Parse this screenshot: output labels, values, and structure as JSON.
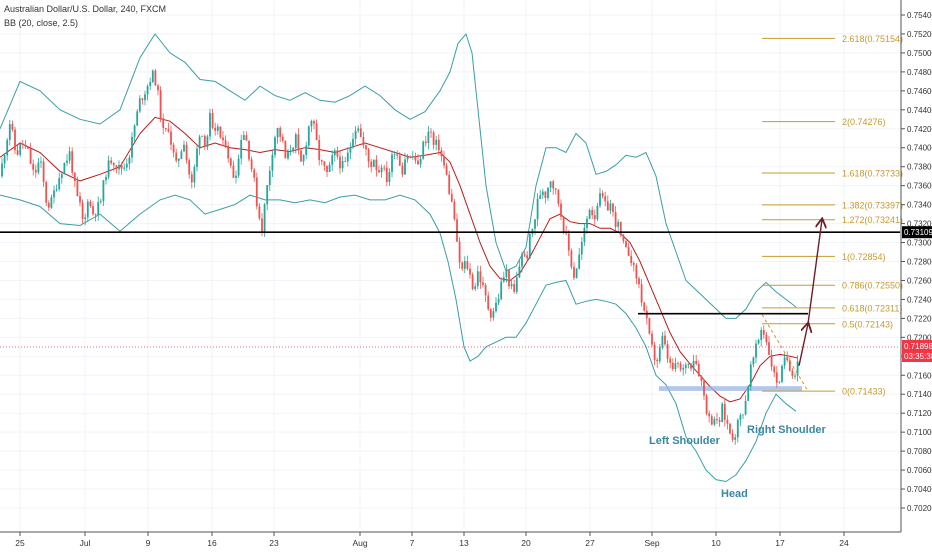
{
  "header": {
    "title": "Australian Dollar/U.S. Dollar, 240, FXCM",
    "indicator": "BB (20, close, 2.5)"
  },
  "colors": {
    "candle_up": "#26a69a",
    "candle_down": "#ef5350",
    "bb_band": "#3a9ea5",
    "bb_basis": "#b71c1c",
    "fib": "#c79a2c",
    "resistance": "#000000",
    "price_tag": "#f23645",
    "shoulder_label": "#3a88a0",
    "zone": "#9ab3e6",
    "arrow": "#6b1d2a"
  },
  "chart_data": {
    "type": "candlestick",
    "title": "Australian Dollar/U.S. Dollar, 240, FXCM",
    "x_ticks": [
      "25",
      "Jul",
      "9",
      "16",
      "23",
      "Aug",
      "7",
      "13",
      "20",
      "27",
      "Sep",
      "10",
      "17",
      "24"
    ],
    "y_ticks": [
      "0.75400",
      "0.75200",
      "0.75000",
      "0.74800",
      "0.74600",
      "0.74400",
      "0.74200",
      "0.74000",
      "0.73800",
      "0.73600",
      "0.73400",
      "0.73200",
      "0.73000",
      "0.72800",
      "0.72600",
      "0.72400",
      "0.72200",
      "0.72000",
      "0.71800",
      "0.71600",
      "0.71400",
      "0.71200",
      "0.71000",
      "0.70800",
      "0.70600",
      "0.70400",
      "0.70200"
    ],
    "ylim": [
      0.7015,
      0.7555
    ],
    "close_path": [
      [
        0,
        0.737
      ],
      [
        10,
        0.7428
      ],
      [
        16,
        0.7392
      ],
      [
        22,
        0.7405
      ],
      [
        28,
        0.7395
      ],
      [
        34,
        0.737
      ],
      [
        40,
        0.7388
      ],
      [
        46,
        0.7345
      ],
      [
        50,
        0.7338
      ],
      [
        56,
        0.736
      ],
      [
        62,
        0.7378
      ],
      [
        70,
        0.7395
      ],
      [
        76,
        0.735
      ],
      [
        80,
        0.7338
      ],
      [
        84,
        0.7315
      ],
      [
        88,
        0.735
      ],
      [
        92,
        0.733
      ],
      [
        100,
        0.734
      ],
      [
        106,
        0.7375
      ],
      [
        112,
        0.739
      ],
      [
        118,
        0.7378
      ],
      [
        124,
        0.738
      ],
      [
        130,
        0.7395
      ],
      [
        134,
        0.742
      ],
      [
        140,
        0.745
      ],
      [
        146,
        0.7462
      ],
      [
        152,
        0.7478
      ],
      [
        156,
        0.747
      ],
      [
        160,
        0.744
      ],
      [
        164,
        0.741
      ],
      [
        168,
        0.7425
      ],
      [
        172,
        0.74
      ],
      [
        176,
        0.738
      ],
      [
        180,
        0.7395
      ],
      [
        184,
        0.7408
      ],
      [
        188,
        0.7378
      ],
      [
        192,
        0.736
      ],
      [
        196,
        0.739
      ],
      [
        200,
        0.742
      ],
      [
        206,
        0.7403
      ],
      [
        210,
        0.7432
      ],
      [
        214,
        0.7407
      ],
      [
        218,
        0.7425
      ],
      [
        222,
        0.74
      ],
      [
        226,
        0.7408
      ],
      [
        230,
        0.738
      ],
      [
        234,
        0.737
      ],
      [
        238,
        0.7383
      ],
      [
        242,
        0.742
      ],
      [
        246,
        0.741
      ],
      [
        250,
        0.7388
      ],
      [
        254,
        0.7365
      ],
      [
        258,
        0.7333
      ],
      [
        262,
        0.7315
      ],
      [
        266,
        0.735
      ],
      [
        270,
        0.738
      ],
      [
        274,
        0.741
      ],
      [
        278,
        0.742
      ],
      [
        282,
        0.7408
      ],
      [
        286,
        0.7385
      ],
      [
        290,
        0.7398
      ],
      [
        296,
        0.741
      ],
      [
        300,
        0.738
      ],
      [
        304,
        0.7392
      ],
      [
        308,
        0.742
      ],
      [
        312,
        0.7432
      ],
      [
        316,
        0.7408
      ],
      [
        320,
        0.7385
      ],
      [
        324,
        0.7378
      ],
      [
        328,
        0.737
      ],
      [
        332,
        0.7388
      ],
      [
        336,
        0.7395
      ],
      [
        340,
        0.7384
      ],
      [
        344,
        0.7378
      ],
      [
        350,
        0.74
      ],
      [
        354,
        0.742
      ],
      [
        358,
        0.7425
      ],
      [
        362,
        0.7405
      ],
      [
        366,
        0.7395
      ],
      [
        370,
        0.738
      ],
      [
        374,
        0.739
      ],
      [
        378,
        0.7373
      ],
      [
        382,
        0.7385
      ],
      [
        386,
        0.7365
      ],
      [
        390,
        0.7378
      ],
      [
        394,
        0.74
      ],
      [
        398,
        0.7392
      ],
      [
        402,
        0.7375
      ],
      [
        406,
        0.7395
      ],
      [
        410,
        0.7388
      ],
      [
        414,
        0.7392
      ],
      [
        418,
        0.7378
      ],
      [
        422,
        0.74
      ],
      [
        426,
        0.741
      ],
      [
        430,
        0.742
      ],
      [
        434,
        0.74
      ],
      [
        438,
        0.7405
      ],
      [
        442,
        0.7388
      ],
      [
        446,
        0.7373
      ],
      [
        450,
        0.735
      ],
      [
        454,
        0.733
      ],
      [
        458,
        0.7285
      ],
      [
        462,
        0.727
      ],
      [
        466,
        0.728
      ],
      [
        470,
        0.7265
      ],
      [
        474,
        0.725
      ],
      [
        478,
        0.727
      ],
      [
        482,
        0.7255
      ],
      [
        486,
        0.724
      ],
      [
        490,
        0.7225
      ],
      [
        494,
        0.723
      ],
      [
        498,
        0.724
      ],
      [
        502,
        0.726
      ],
      [
        506,
        0.727
      ],
      [
        510,
        0.7255
      ],
      [
        514,
        0.7245
      ],
      [
        518,
        0.7268
      ],
      [
        522,
        0.729
      ],
      [
        526,
        0.728
      ],
      [
        530,
        0.7305
      ],
      [
        534,
        0.732
      ],
      [
        538,
        0.7345
      ],
      [
        542,
        0.7358
      ],
      [
        546,
        0.735
      ],
      [
        550,
        0.737
      ],
      [
        554,
        0.7358
      ],
      [
        558,
        0.7345
      ],
      [
        562,
        0.7325
      ],
      [
        566,
        0.7305
      ],
      [
        570,
        0.7285
      ],
      [
        574,
        0.7265
      ],
      [
        578,
        0.728
      ],
      [
        582,
        0.73
      ],
      [
        586,
        0.732
      ],
      [
        590,
        0.734
      ],
      [
        594,
        0.7325
      ],
      [
        598,
        0.7345
      ],
      [
        602,
        0.7348
      ],
      [
        606,
        0.7335
      ],
      [
        610,
        0.7342
      ],
      [
        614,
        0.7325
      ],
      [
        618,
        0.7318
      ],
      [
        622,
        0.73
      ],
      [
        626,
        0.729
      ],
      [
        630,
        0.729
      ],
      [
        634,
        0.727
      ],
      [
        638,
        0.726
      ],
      [
        642,
        0.7238
      ],
      [
        646,
        0.722
      ],
      [
        650,
        0.7195
      ],
      [
        654,
        0.718
      ],
      [
        658,
        0.7175
      ],
      [
        662,
        0.72
      ],
      [
        666,
        0.7185
      ],
      [
        670,
        0.717
      ],
      [
        674,
        0.7165
      ],
      [
        678,
        0.7172
      ],
      [
        682,
        0.716
      ],
      [
        686,
        0.7175
      ],
      [
        690,
        0.717
      ],
      [
        694,
        0.718
      ],
      [
        698,
        0.7168
      ],
      [
        702,
        0.715
      ],
      [
        706,
        0.7128
      ],
      [
        710,
        0.711
      ],
      [
        714,
        0.7118
      ],
      [
        718,
        0.7105
      ],
      [
        722,
        0.7125
      ],
      [
        726,
        0.7112
      ],
      [
        730,
        0.71
      ],
      [
        734,
        0.7095
      ],
      [
        738,
        0.711
      ],
      [
        742,
        0.712
      ],
      [
        746,
        0.7135
      ],
      [
        750,
        0.7165
      ],
      [
        754,
        0.718
      ],
      [
        758,
        0.7195
      ],
      [
        762,
        0.7212
      ],
      [
        766,
        0.7198
      ],
      [
        770,
        0.718
      ],
      [
        774,
        0.716
      ],
      [
        778,
        0.7152
      ],
      [
        782,
        0.7165
      ],
      [
        786,
        0.718
      ],
      [
        790,
        0.717
      ],
      [
        794,
        0.716
      ],
      [
        798,
        0.7178
      ]
    ],
    "bb_upper": [
      [
        0,
        0.742
      ],
      [
        20,
        0.747
      ],
      [
        40,
        0.746
      ],
      [
        60,
        0.744
      ],
      [
        80,
        0.743
      ],
      [
        100,
        0.7425
      ],
      [
        120,
        0.744
      ],
      [
        140,
        0.7495
      ],
      [
        155,
        0.752
      ],
      [
        170,
        0.75
      ],
      [
        185,
        0.749
      ],
      [
        200,
        0.7472
      ],
      [
        215,
        0.747
      ],
      [
        230,
        0.746
      ],
      [
        245,
        0.745
      ],
      [
        260,
        0.7465
      ],
      [
        275,
        0.7455
      ],
      [
        290,
        0.745
      ],
      [
        305,
        0.7458
      ],
      [
        320,
        0.745
      ],
      [
        335,
        0.7448
      ],
      [
        350,
        0.7455
      ],
      [
        365,
        0.7465
      ],
      [
        380,
        0.7455
      ],
      [
        395,
        0.744
      ],
      [
        410,
        0.743
      ],
      [
        425,
        0.7438
      ],
      [
        440,
        0.746
      ],
      [
        450,
        0.748
      ],
      [
        458,
        0.751
      ],
      [
        466,
        0.752
      ],
      [
        472,
        0.75
      ],
      [
        478,
        0.744
      ],
      [
        486,
        0.736
      ],
      [
        496,
        0.73
      ],
      [
        506,
        0.727
      ],
      [
        516,
        0.7275
      ],
      [
        526,
        0.7295
      ],
      [
        536,
        0.736
      ],
      [
        546,
        0.74
      ],
      [
        556,
        0.74
      ],
      [
        566,
        0.7395
      ],
      [
        576,
        0.7415
      ],
      [
        586,
        0.7405
      ],
      [
        596,
        0.7372
      ],
      [
        606,
        0.7375
      ],
      [
        616,
        0.7382
      ],
      [
        626,
        0.7392
      ],
      [
        636,
        0.739
      ],
      [
        646,
        0.7395
      ],
      [
        656,
        0.737
      ],
      [
        666,
        0.732
      ],
      [
        676,
        0.729
      ],
      [
        686,
        0.726
      ],
      [
        696,
        0.725
      ],
      [
        706,
        0.724
      ],
      [
        716,
        0.723
      ],
      [
        726,
        0.722
      ],
      [
        736,
        0.722
      ],
      [
        746,
        0.723
      ],
      [
        756,
        0.7248
      ],
      [
        766,
        0.7258
      ],
      [
        776,
        0.7248
      ],
      [
        786,
        0.724
      ],
      [
        796,
        0.7232
      ]
    ],
    "bb_lower": [
      [
        0,
        0.735
      ],
      [
        20,
        0.7345
      ],
      [
        40,
        0.7338
      ],
      [
        60,
        0.732
      ],
      [
        80,
        0.7318
      ],
      [
        100,
        0.733
      ],
      [
        120,
        0.7312
      ],
      [
        140,
        0.733
      ],
      [
        160,
        0.7345
      ],
      [
        175,
        0.735
      ],
      [
        190,
        0.7345
      ],
      [
        205,
        0.733
      ],
      [
        220,
        0.7335
      ],
      [
        235,
        0.734
      ],
      [
        250,
        0.735
      ],
      [
        265,
        0.7345
      ],
      [
        280,
        0.7345
      ],
      [
        295,
        0.7342
      ],
      [
        310,
        0.7345
      ],
      [
        325,
        0.7342
      ],
      [
        340,
        0.7348
      ],
      [
        355,
        0.735
      ],
      [
        370,
        0.7345
      ],
      [
        385,
        0.7345
      ],
      [
        400,
        0.735
      ],
      [
        415,
        0.7345
      ],
      [
        430,
        0.733
      ],
      [
        440,
        0.731
      ],
      [
        448,
        0.728
      ],
      [
        456,
        0.724
      ],
      [
        464,
        0.719
      ],
      [
        470,
        0.7175
      ],
      [
        478,
        0.718
      ],
      [
        486,
        0.719
      ],
      [
        496,
        0.7195
      ],
      [
        506,
        0.72
      ],
      [
        516,
        0.72
      ],
      [
        526,
        0.7215
      ],
      [
        536,
        0.7235
      ],
      [
        546,
        0.7255
      ],
      [
        556,
        0.7258
      ],
      [
        566,
        0.726
      ],
      [
        576,
        0.7235
      ],
      [
        586,
        0.7238
      ],
      [
        596,
        0.724
      ],
      [
        606,
        0.7238
      ],
      [
        616,
        0.7235
      ],
      [
        626,
        0.7225
      ],
      [
        636,
        0.721
      ],
      [
        646,
        0.719
      ],
      [
        656,
        0.716
      ],
      [
        666,
        0.715
      ],
      [
        676,
        0.713
      ],
      [
        686,
        0.7095
      ],
      [
        696,
        0.708
      ],
      [
        706,
        0.706
      ],
      [
        716,
        0.705
      ],
      [
        726,
        0.7048
      ],
      [
        736,
        0.7055
      ],
      [
        746,
        0.707
      ],
      [
        756,
        0.709
      ],
      [
        766,
        0.712
      ],
      [
        776,
        0.714
      ],
      [
        786,
        0.713
      ],
      [
        796,
        0.7122
      ]
    ],
    "bb_basis": [
      [
        0,
        0.739
      ],
      [
        20,
        0.7405
      ],
      [
        40,
        0.7395
      ],
      [
        60,
        0.7375
      ],
      [
        80,
        0.7365
      ],
      [
        100,
        0.7372
      ],
      [
        120,
        0.738
      ],
      [
        140,
        0.7415
      ],
      [
        155,
        0.7432
      ],
      [
        170,
        0.7428
      ],
      [
        185,
        0.7415
      ],
      [
        200,
        0.74
      ],
      [
        215,
        0.7405
      ],
      [
        230,
        0.74
      ],
      [
        245,
        0.7398
      ],
      [
        260,
        0.7395
      ],
      [
        275,
        0.7398
      ],
      [
        290,
        0.7396
      ],
      [
        305,
        0.74
      ],
      [
        320,
        0.7398
      ],
      [
        335,
        0.7395
      ],
      [
        350,
        0.74
      ],
      [
        365,
        0.7405
      ],
      [
        380,
        0.74
      ],
      [
        395,
        0.7395
      ],
      [
        410,
        0.739
      ],
      [
        425,
        0.7392
      ],
      [
        440,
        0.7395
      ],
      [
        450,
        0.7385
      ],
      [
        460,
        0.736
      ],
      [
        470,
        0.733
      ],
      [
        480,
        0.73
      ],
      [
        490,
        0.7275
      ],
      [
        500,
        0.7262
      ],
      [
        510,
        0.726
      ],
      [
        520,
        0.7268
      ],
      [
        530,
        0.7285
      ],
      [
        540,
        0.7305
      ],
      [
        550,
        0.7325
      ],
      [
        560,
        0.733
      ],
      [
        570,
        0.7322
      ],
      [
        580,
        0.732
      ],
      [
        590,
        0.732
      ],
      [
        600,
        0.7315
      ],
      [
        610,
        0.7315
      ],
      [
        620,
        0.731
      ],
      [
        630,
        0.73
      ],
      [
        640,
        0.728
      ],
      [
        650,
        0.7255
      ],
      [
        660,
        0.723
      ],
      [
        670,
        0.7205
      ],
      [
        680,
        0.7185
      ],
      [
        690,
        0.7172
      ],
      [
        700,
        0.716
      ],
      [
        710,
        0.7148
      ],
      [
        720,
        0.7138
      ],
      [
        730,
        0.7132
      ],
      [
        740,
        0.7135
      ],
      [
        750,
        0.715
      ],
      [
        760,
        0.717
      ],
      [
        770,
        0.718
      ],
      [
        780,
        0.7182
      ],
      [
        790,
        0.718
      ],
      [
        798,
        0.7178
      ]
    ],
    "fibonacci": [
      {
        "ratio": "2.618",
        "label": "2.618(0.75154)",
        "price": 0.75154
      },
      {
        "ratio": "2",
        "label": "2(0.74276)",
        "price": 0.74276
      },
      {
        "ratio": "1.618",
        "label": "1.618(0.73733)",
        "price": 0.73733
      },
      {
        "ratio": "1.382",
        "label": "1.382(0.73397)",
        "price": 0.73397
      },
      {
        "ratio": "1.272",
        "label": "1.272(0.73241)",
        "price": 0.73241
      },
      {
        "ratio": "1",
        "label": "1(0.72854)",
        "price": 0.72854
      },
      {
        "ratio": "0.786",
        "label": "0.786(0.72550)",
        "price": 0.7255
      },
      {
        "ratio": "0.618",
        "label": "0.618(0.72311)",
        "price": 0.72311
      },
      {
        "ratio": "0.5",
        "label": "0.5(0.72143)",
        "price": 0.72143
      },
      {
        "ratio": "0",
        "label": "0(0.71433)",
        "price": 0.71433
      }
    ],
    "resistance_line": {
      "price": 0.73109,
      "label": "0.73109"
    },
    "neckline": 0.7225,
    "support_zone": [
      0.71435,
      0.71485
    ],
    "current_price": {
      "price": 0.71898,
      "label": "0.71898",
      "countdown": "03:35:38"
    },
    "annotations": {
      "left_shoulder": "Left Shoulder",
      "right_shoulder": "Right Shoulder",
      "head": "Head"
    }
  }
}
